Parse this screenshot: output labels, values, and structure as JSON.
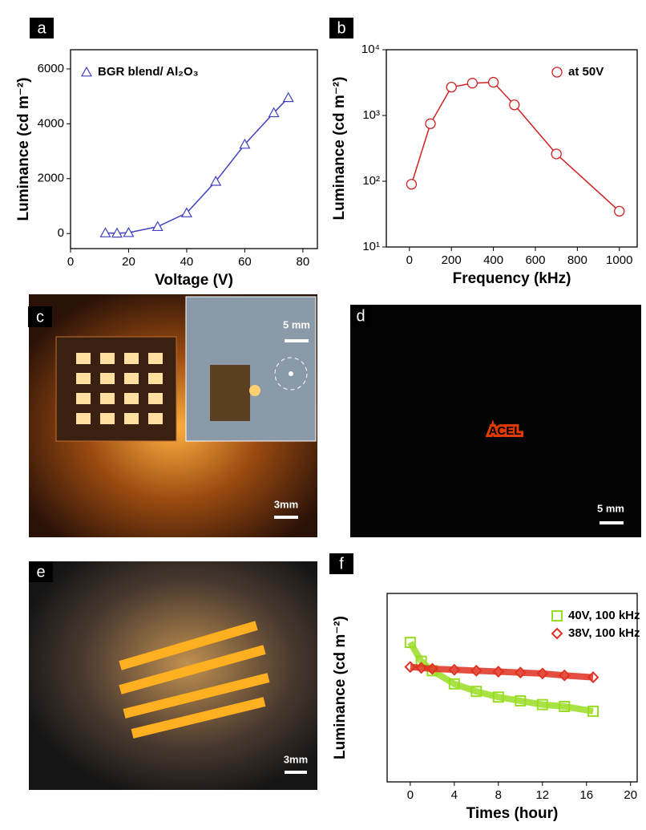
{
  "chart_data": [
    {
      "type": "line",
      "panel_label": "a",
      "xlabel": "Voltage (V)",
      "ylabel": "Luminance (cd m⁻²)",
      "x": [
        12,
        16,
        20,
        30,
        40,
        50,
        60,
        70,
        75
      ],
      "series": [
        {
          "name": "BGR blend/ Al₂O₃",
          "color": "#4040c0",
          "marker": "triangle",
          "values": [
            20,
            10,
            30,
            250,
            750,
            1900,
            3250,
            4400,
            4950
          ]
        }
      ],
      "xlim": [
        0,
        85
      ],
      "xticks": [
        0,
        20,
        40,
        60,
        80
      ],
      "ylim": [
        -550,
        6700
      ],
      "yticks": [
        0,
        2000,
        4000,
        6000
      ],
      "legend": "upper left"
    },
    {
      "type": "line",
      "panel_label": "b",
      "xlabel": "Frequency (kHz)",
      "ylabel": "Luminance (cd m⁻²)",
      "x": [
        10,
        100,
        200,
        300,
        400,
        500,
        700,
        1000
      ],
      "series": [
        {
          "name": "at 50V",
          "color": "#d02020",
          "marker": "circle",
          "values": [
            90,
            750,
            2700,
            3100,
            3200,
            1450,
            260,
            35
          ]
        }
      ],
      "xlim": [
        -110,
        1085
      ],
      "xticks": [
        0,
        200,
        400,
        600,
        800,
        1000
      ],
      "log_y": true,
      "ylim": [
        10,
        10000
      ],
      "yticks": [
        {
          "value": 10,
          "label": "10¹"
        },
        {
          "value": 100,
          "label": "10²"
        },
        {
          "value": 1000,
          "label": "10³"
        },
        {
          "value": 10000,
          "label": "10⁴"
        }
      ],
      "legend": "upper right"
    },
    {
      "type": "line",
      "panel_label": "f",
      "xlabel": "Times (hour)",
      "ylabel": "Luminance (cd m⁻²)",
      "x": [
        0,
        1,
        2,
        4,
        6,
        8,
        10,
        12,
        14,
        16.6
      ],
      "series": [
        {
          "name": "40V, 100 kHz",
          "color": "#99dd22",
          "marker": "square",
          "values": [
            0.74,
            0.64,
            0.59,
            0.52,
            0.48,
            0.45,
            0.43,
            0.41,
            0.4,
            0.375
          ]
        },
        {
          "name": "38V, 100 kHz",
          "color": "#e03020",
          "marker": "diamond",
          "values": [
            0.61,
            0.605,
            0.6,
            0.595,
            0.59,
            0.585,
            0.58,
            0.575,
            0.565,
            0.555
          ]
        }
      ],
      "xlim": [
        -2.1,
        20.6
      ],
      "xticks": [
        0,
        4,
        8,
        12,
        16,
        20
      ],
      "ylim": [
        0,
        1
      ],
      "legend": "upper right"
    }
  ],
  "photos": [
    {
      "label": "c",
      "scale_bars": [
        "5 mm",
        "3mm"
      ]
    },
    {
      "label": "d",
      "scale_bars": [
        "5 mm"
      ]
    },
    {
      "label": "e",
      "scale_bars": [
        "3mm"
      ]
    }
  ]
}
